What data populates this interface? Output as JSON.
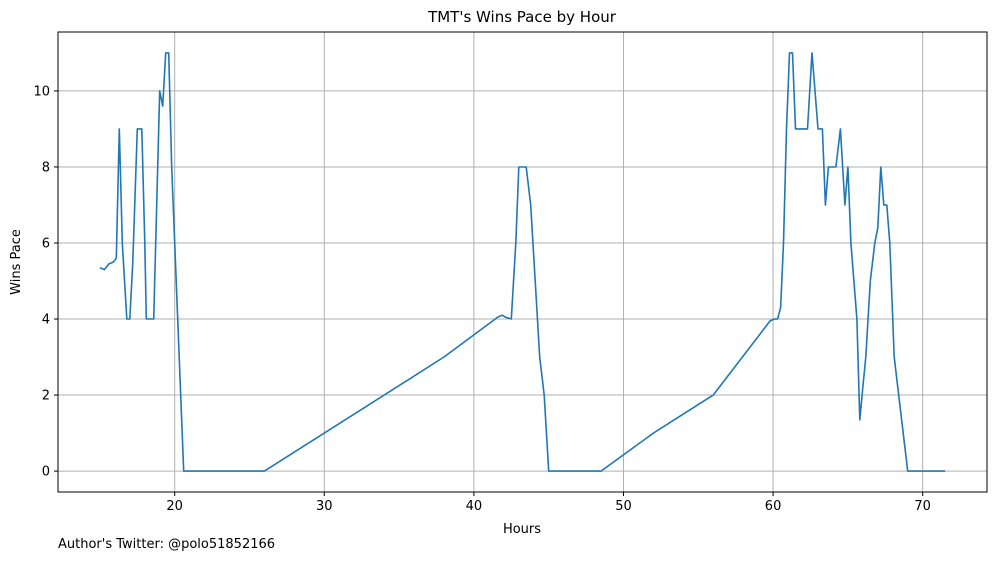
{
  "chart_data": {
    "type": "line",
    "title": "TMT's Wins Pace by Hour",
    "xlabel": "Hours",
    "ylabel": "Wins Pace",
    "xlim": [
      12.2,
      74.3
    ],
    "ylim": [
      -0.55,
      11.55
    ],
    "xticks": [
      20,
      30,
      40,
      50,
      60,
      70
    ],
    "yticks": [
      0,
      2,
      4,
      6,
      8,
      10
    ],
    "grid": true,
    "line_color": "#1f77b4",
    "series": [
      {
        "x": [
          15.0,
          15.3,
          15.6,
          15.9,
          16.1,
          16.3,
          16.5,
          16.8,
          17.0,
          17.2,
          17.5,
          17.8,
          18.0,
          18.1,
          18.3,
          18.6,
          18.8,
          19.0,
          19.2,
          19.4,
          19.6,
          19.8,
          20.0,
          20.3,
          20.6,
          20.8,
          21.0,
          23.0,
          26.0,
          30.0,
          35.0,
          38.0,
          41.6,
          41.9,
          42.1,
          42.5,
          42.8,
          43.0,
          43.3,
          43.5,
          43.8,
          44.1,
          44.4,
          44.7,
          45.0,
          48.5,
          52.0,
          56.0,
          59.8,
          60.1,
          60.3,
          60.5,
          60.7,
          60.9,
          61.1,
          61.3,
          61.5,
          61.7,
          61.9,
          62.3,
          62.6,
          62.8,
          63.0,
          63.3,
          63.5,
          63.7,
          63.9,
          64.2,
          64.5,
          64.8,
          65.0,
          65.2,
          65.4,
          65.6,
          65.8,
          66.0,
          66.2,
          66.5,
          66.8,
          67.0,
          67.2,
          67.4,
          67.6,
          67.8,
          68.1,
          68.4,
          68.7,
          69.0,
          69.3,
          70.0,
          71.5
        ],
        "y": [
          5.35,
          5.3,
          5.45,
          5.5,
          5.6,
          9.0,
          6.0,
          4.0,
          4.0,
          5.5,
          9.0,
          9.0,
          6.0,
          4.0,
          4.0,
          4.0,
          7.0,
          10.0,
          9.6,
          11.0,
          11.0,
          8.0,
          6.0,
          3.0,
          0.0,
          0.0,
          0.0,
          0.0,
          0.0,
          1.0,
          2.25,
          3.0,
          4.05,
          4.1,
          4.05,
          4.0,
          6.0,
          8.0,
          8.0,
          8.0,
          7.0,
          5.0,
          3.0,
          2.0,
          0.0,
          0.0,
          1.0,
          2.0,
          3.95,
          4.0,
          4.0,
          4.3,
          6.0,
          9.0,
          11.0,
          11.0,
          9.0,
          9.0,
          9.0,
          9.0,
          11.0,
          10.0,
          9.0,
          9.0,
          7.0,
          8.0,
          8.0,
          8.0,
          9.0,
          7.0,
          8.0,
          6.0,
          5.0,
          4.0,
          1.35,
          2.2,
          3.0,
          5.0,
          6.0,
          6.4,
          8.0,
          7.0,
          7.0,
          6.0,
          3.0,
          2.0,
          1.0,
          0.0,
          0.0,
          0.0,
          0.0
        ]
      }
    ]
  },
  "footer": "Author's Twitter: @polo51852166"
}
